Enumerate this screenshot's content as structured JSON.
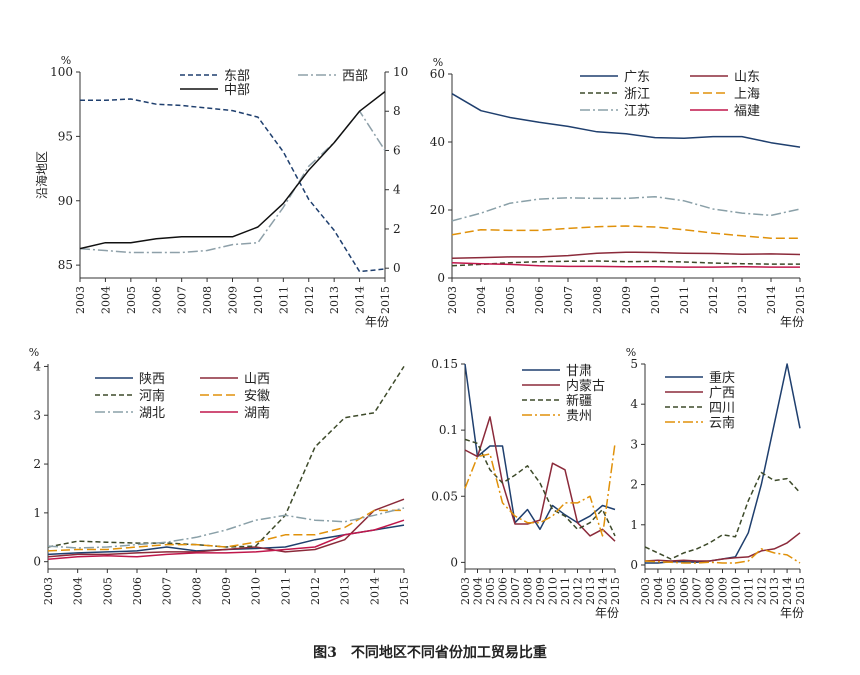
{
  "caption": "图3　不同地区不同省份加工贸易比重",
  "chart_data": [
    {
      "type": "line",
      "ylabel": "沿海地区",
      "unit": "%",
      "xlabel": "年份",
      "x": [
        2003,
        2004,
        2005,
        2006,
        2007,
        2008,
        2009,
        2010,
        2011,
        2012,
        2013,
        2014,
        2015
      ],
      "ylim": [
        84,
        100
      ],
      "yticks": [
        85,
        90,
        95,
        100
      ],
      "y2lim": [
        -0.5,
        10
      ],
      "y2ticks": [
        0,
        2,
        4,
        6,
        8,
        10
      ],
      "legend": "top",
      "series": [
        {
          "name": "东部",
          "axis": "left",
          "color": "#1f3f6e",
          "dash": "5,3",
          "values": [
            97.8,
            97.8,
            97.9,
            97.5,
            97.4,
            97.2,
            97.0,
            96.5,
            93.8,
            90.1,
            87.7,
            84.5,
            84.7
          ]
        },
        {
          "name": "西部",
          "axis": "right",
          "color": "#8ea0a9",
          "dash": "10,3,2,3",
          "values": [
            1.0,
            0.9,
            0.8,
            0.8,
            0.8,
            0.9,
            1.2,
            1.3,
            3.1,
            5.2,
            6.4,
            8.0,
            6.0
          ]
        },
        {
          "name": "中部",
          "axis": "right",
          "color": "#111111",
          "dash": "",
          "values": [
            1.0,
            1.3,
            1.3,
            1.5,
            1.6,
            1.6,
            1.6,
            2.1,
            3.3,
            5.0,
            6.4,
            8.0,
            9.0
          ]
        }
      ]
    },
    {
      "type": "line",
      "unit": "%",
      "xlabel": "年份",
      "x": [
        2003,
        2004,
        2005,
        2006,
        2007,
        2008,
        2009,
        2010,
        2011,
        2012,
        2013,
        2014,
        2015
      ],
      "ylim": [
        0,
        60
      ],
      "yticks": [
        0,
        20,
        40,
        60
      ],
      "legend": "top",
      "series": [
        {
          "name": "广东",
          "color": "#1f3f6e",
          "dash": "",
          "values": [
            54.2,
            49.2,
            47.2,
            45.8,
            44.6,
            43.0,
            42.4,
            41.3,
            41.1,
            41.6,
            41.6,
            39.8,
            38.5
          ]
        },
        {
          "name": "山东",
          "color": "#8b2a3a",
          "dash": "",
          "values": [
            5.8,
            6.0,
            6.2,
            6.2,
            6.6,
            7.3,
            7.6,
            7.5,
            7.3,
            7.2,
            7.0,
            7.1,
            6.9
          ]
        },
        {
          "name": "浙江",
          "color": "#3d4a2a",
          "dash": "5,3",
          "values": [
            3.6,
            4.0,
            4.5,
            4.8,
            4.9,
            5.0,
            4.8,
            4.9,
            4.7,
            4.4,
            4.2,
            4.1,
            4.1
          ]
        },
        {
          "name": "上海",
          "color": "#e0910a",
          "dash": "9,4",
          "values": [
            12.7,
            14.2,
            14.0,
            14.0,
            14.6,
            15.1,
            15.3,
            15.0,
            14.2,
            13.2,
            12.4,
            11.7,
            11.7
          ]
        },
        {
          "name": "江苏",
          "color": "#8aa0a8",
          "dash": "10,3,2,3",
          "values": [
            16.8,
            19.1,
            22.0,
            23.2,
            23.6,
            23.4,
            23.4,
            23.9,
            22.7,
            20.3,
            19.1,
            18.4,
            20.3
          ]
        },
        {
          "name": "福建",
          "color": "#c0174b",
          "dash": "",
          "values": [
            4.5,
            4.2,
            4.0,
            3.6,
            3.4,
            3.4,
            3.3,
            3.3,
            3.2,
            3.2,
            3.3,
            3.2,
            3.2
          ]
        }
      ]
    },
    {
      "type": "line",
      "unit": "%",
      "xlabel": "",
      "x": [
        2003,
        2004,
        2005,
        2006,
        2007,
        2008,
        2009,
        2010,
        2011,
        2012,
        2013,
        2014,
        2015
      ],
      "ylim": [
        -0.15,
        4.05
      ],
      "yticks": [
        0,
        1,
        2,
        3,
        4
      ],
      "legend": "top",
      "series": [
        {
          "name": "陕西",
          "color": "#1f3f6e",
          "dash": "",
          "values": [
            0.15,
            0.18,
            0.2,
            0.22,
            0.3,
            0.22,
            0.25,
            0.27,
            0.3,
            0.45,
            0.55,
            0.65,
            0.75
          ]
        },
        {
          "name": "山西",
          "color": "#8b2a3a",
          "dash": "",
          "values": [
            0.1,
            0.15,
            0.15,
            0.18,
            0.2,
            0.2,
            0.25,
            0.3,
            0.2,
            0.25,
            0.45,
            1.05,
            1.28
          ]
        },
        {
          "name": "河南",
          "color": "#3d4a2a",
          "dash": "5,3",
          "values": [
            0.3,
            0.42,
            0.4,
            0.38,
            0.38,
            0.35,
            0.3,
            0.32,
            0.95,
            2.35,
            2.95,
            3.05,
            4.0
          ]
        },
        {
          "name": "安徽",
          "color": "#e0910a",
          "dash": "9,4",
          "values": [
            0.22,
            0.25,
            0.25,
            0.3,
            0.35,
            0.35,
            0.3,
            0.4,
            0.55,
            0.55,
            0.7,
            1.05,
            1.05
          ]
        },
        {
          "name": "湖北",
          "color": "#8aa0a8",
          "dash": "10,3,2,3",
          "values": [
            0.32,
            0.28,
            0.3,
            0.35,
            0.4,
            0.5,
            0.65,
            0.85,
            0.95,
            0.85,
            0.82,
            0.95,
            1.1
          ]
        },
        {
          "name": "湖南",
          "color": "#c0174b",
          "dash": "",
          "values": [
            0.05,
            0.1,
            0.12,
            0.1,
            0.15,
            0.18,
            0.18,
            0.2,
            0.25,
            0.3,
            0.55,
            0.65,
            0.85
          ]
        }
      ]
    },
    {
      "type": "line",
      "unit": "",
      "xlabel": "年份",
      "x": [
        2003,
        2004,
        2005,
        2006,
        2007,
        2008,
        2009,
        2010,
        2011,
        2012,
        2013,
        2014,
        2015
      ],
      "ylim": [
        -0.005,
        0.15
      ],
      "yticks": [
        0,
        0.05,
        0.1,
        0.15
      ],
      "legend": "top-right",
      "series": [
        {
          "name": "甘肃",
          "color": "#1f3f6e",
          "dash": "",
          "values": [
            0.15,
            0.08,
            0.088,
            0.088,
            0.03,
            0.04,
            0.025,
            0.043,
            0.036,
            0.03,
            0.035,
            0.043,
            0.04
          ]
        },
        {
          "name": "内蒙古",
          "color": "#8b2a3a",
          "dash": "",
          "values": [
            0.085,
            0.08,
            0.11,
            0.06,
            0.029,
            0.029,
            0.032,
            0.075,
            0.07,
            0.03,
            0.02,
            0.025,
            0.016
          ]
        },
        {
          "name": "新疆",
          "color": "#3d4a2a",
          "dash": "5,3",
          "values": [
            0.093,
            0.09,
            0.07,
            0.06,
            0.066,
            0.073,
            0.06,
            0.04,
            0.035,
            0.025,
            0.03,
            0.04,
            0.02
          ]
        },
        {
          "name": "贵州",
          "color": "#e0910a",
          "dash": "10,3,2,3",
          "values": [
            0.056,
            0.08,
            0.082,
            0.045,
            0.035,
            0.03,
            0.03,
            0.035,
            0.045,
            0.045,
            0.05,
            0.02,
            0.09
          ]
        }
      ]
    },
    {
      "type": "line",
      "unit": "%",
      "xlabel": "年份",
      "x": [
        2003,
        2004,
        2005,
        2006,
        2007,
        2008,
        2009,
        2010,
        2011,
        2012,
        2013,
        2014,
        2015
      ],
      "ylim": [
        -0.1,
        5.0
      ],
      "yticks": [
        0,
        1,
        2,
        3,
        4,
        5
      ],
      "legend": "top-right",
      "series": [
        {
          "name": "重庆",
          "color": "#1f3f6e",
          "dash": "",
          "values": [
            0.05,
            0.05,
            0.08,
            0.08,
            0.07,
            0.1,
            0.15,
            0.2,
            0.8,
            2.0,
            3.5,
            5.0,
            3.4
          ]
        },
        {
          "name": "广西",
          "color": "#8b2a3a",
          "dash": "",
          "values": [
            0.1,
            0.12,
            0.1,
            0.12,
            0.1,
            0.1,
            0.15,
            0.18,
            0.2,
            0.35,
            0.4,
            0.55,
            0.8
          ]
        },
        {
          "name": "四川",
          "color": "#3d4a2a",
          "dash": "5,3",
          "values": [
            0.45,
            0.3,
            0.15,
            0.3,
            0.4,
            0.55,
            0.75,
            0.7,
            1.6,
            2.3,
            2.1,
            2.15,
            1.8
          ]
        },
        {
          "name": "云南",
          "color": "#e0910a",
          "dash": "10,3,2,3",
          "values": [
            0.1,
            0.08,
            0.07,
            0.05,
            0.05,
            0.07,
            0.05,
            0.05,
            0.1,
            0.4,
            0.3,
            0.25,
            0.05
          ]
        }
      ]
    }
  ]
}
